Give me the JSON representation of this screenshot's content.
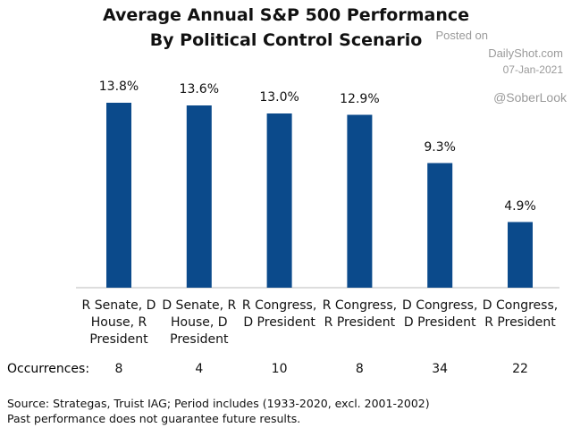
{
  "chart_data": {
    "type": "bar",
    "title": [
      "Average Annual S&P 500 Performance",
      "By Political Control Scenario"
    ],
    "categories": [
      "R Senate, D House, R President",
      "D Senate, R House, D President",
      "R Congress, D President",
      "R Congress, R President",
      "D Congress, D President",
      "D Congress, R President"
    ],
    "values": [
      13.8,
      13.6,
      13.0,
      12.9,
      9.3,
      4.9
    ],
    "value_labels": [
      "13.8%",
      "13.6%",
      "13.0%",
      "12.9%",
      "9.3%",
      "4.9%"
    ],
    "color": "#0b4a8b",
    "occurrences": {
      "label": "Occurrences:",
      "values": [
        8,
        4,
        10,
        8,
        34,
        22
      ]
    },
    "watermark": [
      "Posted on",
      "DailyShot.com",
      "07-Jan-2021",
      "@SoberLook"
    ],
    "source": [
      "Source: Strategas, Truist IAG; Period includes (1933-2020, excl. 2001-2002)",
      "Past performance does not guarantee future results."
    ]
  }
}
